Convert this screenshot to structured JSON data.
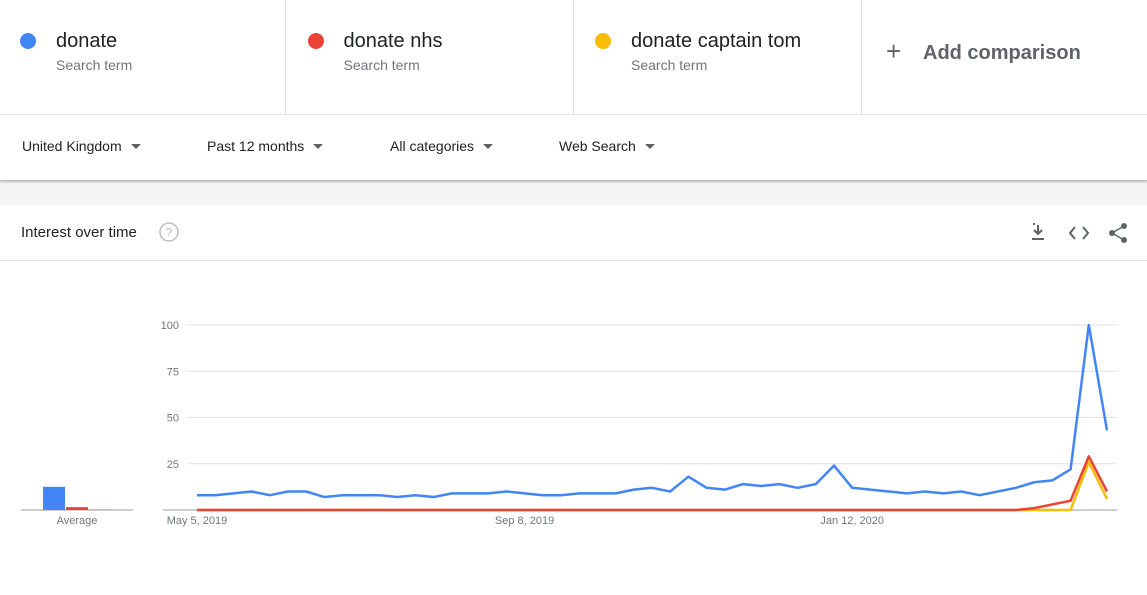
{
  "header": {
    "terms": [
      {
        "label": "donate",
        "sublabel": "Search term",
        "color": "#4285f4"
      },
      {
        "label": "donate nhs",
        "sublabel": "Search term",
        "color": "#ea4335"
      },
      {
        "label": "donate captain tom",
        "sublabel": "Search term",
        "color": "#fbbc04"
      }
    ],
    "add_comparison": "Add comparison"
  },
  "filters": [
    "United Kingdom",
    "Past 12 months",
    "All categories",
    "Web Search"
  ],
  "card": {
    "title": "Interest over time"
  },
  "chart_data": {
    "type": "line",
    "categories": [
      "May 5, 2019",
      null,
      null,
      null,
      null,
      null,
      null,
      null,
      null,
      null,
      null,
      null,
      null,
      null,
      null,
      null,
      null,
      null,
      "Sep 8, 2019",
      null,
      null,
      null,
      null,
      null,
      null,
      null,
      null,
      null,
      null,
      null,
      null,
      null,
      null,
      null,
      null,
      null,
      "Jan 12, 2020",
      null,
      null,
      null,
      null,
      null,
      null,
      null,
      null,
      null,
      null,
      null,
      null,
      null,
      null
    ],
    "series": [
      {
        "name": "donate",
        "color": "#4285f4",
        "average": 12,
        "values": [
          8,
          8,
          9,
          10,
          8,
          10,
          10,
          7,
          8,
          8,
          8,
          7,
          8,
          7,
          9,
          9,
          9,
          10,
          9,
          8,
          8,
          9,
          9,
          9,
          11,
          12,
          10,
          18,
          12,
          11,
          14,
          13,
          14,
          12,
          14,
          24,
          12,
          11,
          10,
          9,
          10,
          9,
          10,
          8,
          10,
          12,
          15,
          16,
          22,
          100,
          43
        ]
      },
      {
        "name": "donate nhs",
        "color": "#ea4335",
        "average": 1,
        "values": [
          0,
          0,
          0,
          0,
          0,
          0,
          0,
          0,
          0,
          0,
          0,
          0,
          0,
          0,
          0,
          0,
          0,
          0,
          0,
          0,
          0,
          0,
          0,
          0,
          0,
          0,
          0,
          0,
          0,
          0,
          0,
          0,
          0,
          0,
          0,
          0,
          0,
          0,
          0,
          0,
          0,
          0,
          0,
          0,
          0,
          0,
          1,
          3,
          5,
          29,
          10
        ]
      },
      {
        "name": "donate captain tom",
        "color": "#fbbc04",
        "average": 0,
        "values": [
          0,
          0,
          0,
          0,
          0,
          0,
          0,
          0,
          0,
          0,
          0,
          0,
          0,
          0,
          0,
          0,
          0,
          0,
          0,
          0,
          0,
          0,
          0,
          0,
          0,
          0,
          0,
          0,
          0,
          0,
          0,
          0,
          0,
          0,
          0,
          0,
          0,
          0,
          0,
          0,
          0,
          0,
          0,
          0,
          0,
          0,
          0,
          0,
          0,
          26,
          6
        ]
      }
    ],
    "average_label": "Average",
    "ylim": [
      0,
      100
    ],
    "yticks": [
      25,
      50,
      75,
      100
    ],
    "grid": true
  }
}
